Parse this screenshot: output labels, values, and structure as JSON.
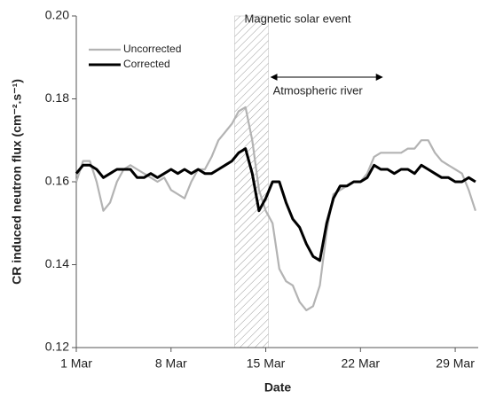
{
  "chart_data": {
    "type": "line",
    "x_label": "Date",
    "y_label": "CR induced neutron flux (cm⁻².s⁻¹)",
    "x": [
      1,
      1.5,
      2,
      2.5,
      3,
      3.5,
      4,
      4.5,
      5,
      5.5,
      6,
      6.5,
      7,
      7.5,
      8,
      8.5,
      9,
      9.5,
      10,
      10.5,
      11,
      11.5,
      12,
      12.5,
      13,
      13.5,
      14,
      14.5,
      15,
      15.5,
      16,
      16.5,
      17,
      17.5,
      18,
      18.5,
      19,
      19.5,
      20,
      20.5,
      21,
      21.5,
      22,
      22.5,
      23,
      23.5,
      24,
      24.5,
      25,
      25.5,
      26,
      26.5,
      27,
      27.5,
      28,
      28.5,
      29,
      29.5,
      30,
      30.5
    ],
    "series": [
      {
        "name": "Uncorrected",
        "color": "#b3b3b3",
        "values": [
          0.16,
          0.165,
          0.165,
          0.16,
          0.153,
          0.155,
          0.16,
          0.163,
          0.164,
          0.163,
          0.162,
          0.161,
          0.16,
          0.161,
          0.158,
          0.157,
          0.156,
          0.16,
          0.163,
          0.163,
          0.166,
          0.17,
          0.172,
          0.174,
          0.177,
          0.178,
          0.17,
          0.158,
          0.153,
          0.15,
          0.139,
          0.136,
          0.135,
          0.131,
          0.129,
          0.13,
          0.135,
          0.148,
          0.157,
          0.158,
          0.159,
          0.16,
          0.16,
          0.162,
          0.166,
          0.167,
          0.167,
          0.167,
          0.167,
          0.168,
          0.168,
          0.17,
          0.17,
          0.167,
          0.165,
          0.164,
          0.163,
          0.162,
          0.158,
          0.153
        ]
      },
      {
        "name": "Corrected",
        "color": "#000000",
        "values": [
          0.162,
          0.164,
          0.164,
          0.163,
          0.161,
          0.162,
          0.163,
          0.163,
          0.163,
          0.161,
          0.161,
          0.162,
          0.161,
          0.162,
          0.163,
          0.162,
          0.163,
          0.162,
          0.163,
          0.162,
          0.162,
          0.163,
          0.164,
          0.165,
          0.167,
          0.168,
          0.162,
          0.153,
          0.156,
          0.16,
          0.16,
          0.155,
          0.151,
          0.149,
          0.145,
          0.142,
          0.141,
          0.15,
          0.156,
          0.159,
          0.159,
          0.16,
          0.16,
          0.161,
          0.164,
          0.163,
          0.163,
          0.162,
          0.163,
          0.163,
          0.162,
          0.164,
          0.163,
          0.162,
          0.161,
          0.161,
          0.16,
          0.16,
          0.161,
          0.16
        ]
      }
    ],
    "xlim": [
      1,
      30.7
    ],
    "xticks": [
      {
        "value": 1,
        "label": "1 Mar"
      },
      {
        "value": 8,
        "label": "8 Mar"
      },
      {
        "value": 15,
        "label": "15 Mar"
      },
      {
        "value": 22,
        "label": "22 Mar"
      },
      {
        "value": 29,
        "label": "29 Mar"
      }
    ],
    "ylim": [
      0.12,
      0.2
    ],
    "yticks": [
      0.12,
      0.14,
      0.16,
      0.18,
      {
        "value": 0.2,
        "label": "0.20"
      }
    ],
    "legend": "top-left",
    "annotations": [
      {
        "text": "Magnetic solar event",
        "kind": "band",
        "x_range": [
          12.7,
          15.2
        ]
      },
      {
        "text": "Atmospheric river",
        "kind": "arrow",
        "x_range": [
          15.4,
          23.6
        ]
      }
    ]
  }
}
